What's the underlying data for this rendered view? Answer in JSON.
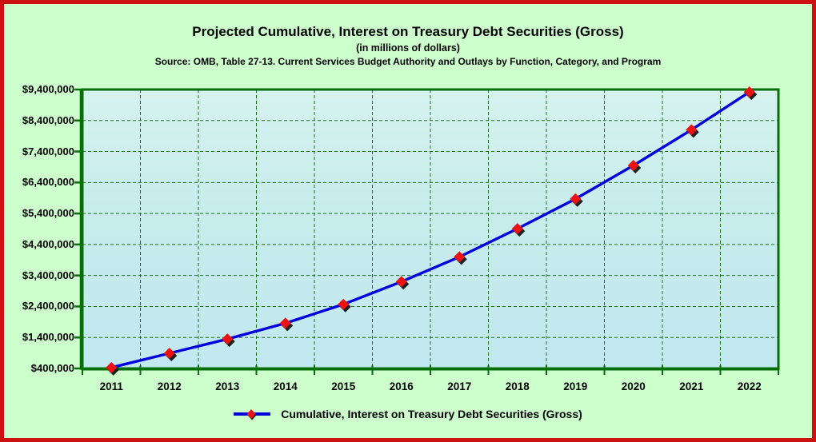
{
  "chart_data": {
    "type": "line",
    "title": "Projected Cumulative, Interest on Treasury Debt Securities (Gross)",
    "subtitle": "(in millions of dollars)",
    "source": "Source: OMB, Table 27-13. Current Services Budget Authority and Outlays by Function, Category, and Program",
    "categories": [
      "2011",
      "2012",
      "2013",
      "2014",
      "2015",
      "2016",
      "2017",
      "2018",
      "2019",
      "2020",
      "2021",
      "2022"
    ],
    "series": [
      {
        "name": "Cumulative, Interest on Treasury Debt Securities (Gross)",
        "values": [
          430000,
          890000,
          1350000,
          1860000,
          2470000,
          3200000,
          4000000,
          4910000,
          5870000,
          6950000,
          8100000,
          9320000
        ],
        "marker": "diamond"
      }
    ],
    "xlabel": "",
    "ylabel": "",
    "ylim": [
      400000,
      9400000
    ],
    "y_ticks": [
      {
        "value": 400000,
        "label": "$400,000"
      },
      {
        "value": 1400000,
        "label": "$1,400,000"
      },
      {
        "value": 2400000,
        "label": "$2,400,000"
      },
      {
        "value": 3400000,
        "label": "$3,400,000"
      },
      {
        "value": 4400000,
        "label": "$4,400,000"
      },
      {
        "value": 5400000,
        "label": "$5,400,000"
      },
      {
        "value": 6400000,
        "label": "$6,400,000"
      },
      {
        "value": 7400000,
        "label": "$7,400,000"
      },
      {
        "value": 8400000,
        "label": "$8,400,000"
      },
      {
        "value": 9400000,
        "label": "$9,400,000"
      }
    ],
    "grid": true,
    "legend_position": "bottom"
  },
  "legend": {
    "label": "Cumulative, Interest on Treasury Debt Securities (Gross)"
  },
  "colors": {
    "frame_border": "#cc1111",
    "background": "#ccffcc",
    "axis": "#086e08",
    "grid": "#1d701d",
    "line": "#0000dd",
    "marker": "#ee1111",
    "marker_shadow": "#0a0a0a",
    "text": "#000000"
  }
}
